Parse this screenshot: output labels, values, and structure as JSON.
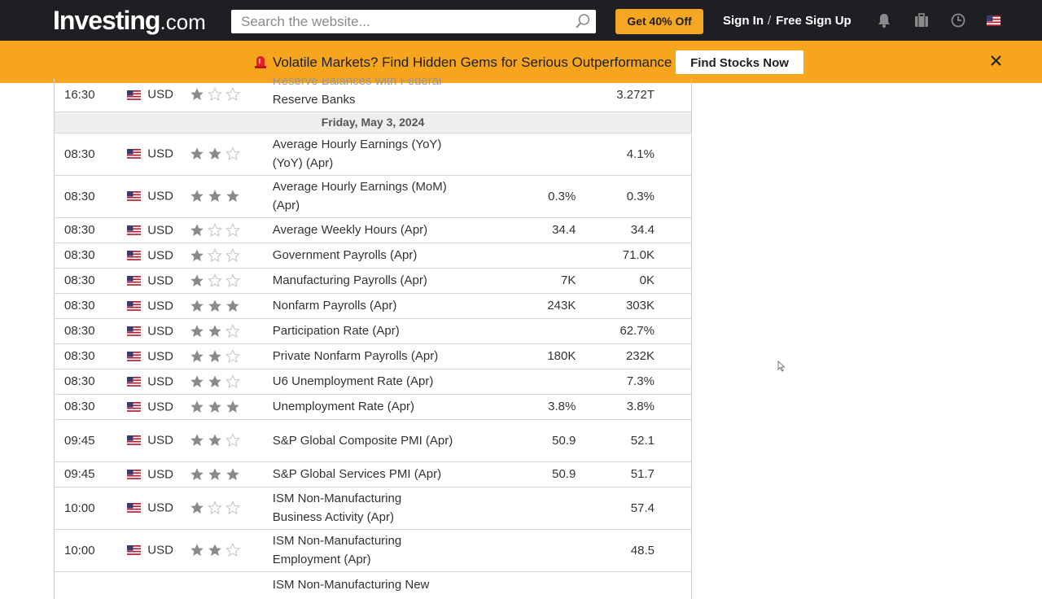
{
  "header": {
    "logo_main": "Investing",
    "logo_suffix": ".com",
    "search_placeholder": "Search the website...",
    "promo_button": "Get 40% Off",
    "sign_in": "Sign In",
    "separator": "/",
    "sign_up": "Free Sign Up",
    "icons": [
      "bell-icon",
      "briefcase-icon",
      "clock-icon",
      "us-flag-icon"
    ]
  },
  "banner": {
    "text": "Volatile Markets? Find Hidden Gems for Serious Outperformance",
    "cta": "Find Stocks Now",
    "icons": [
      "alarm-icon",
      "close-icon"
    ],
    "colors": {
      "background": "#f6a51d"
    }
  },
  "calendar": {
    "partial_row": {
      "time": "16:30",
      "currency": "USD",
      "importance": 1,
      "event_line1": "Reserve Balances with Federal",
      "event_line2": "Reserve Banks",
      "actual": "",
      "forecast": "",
      "previous": "3.272T"
    },
    "date_header": "Friday, May 3, 2024",
    "rows": [
      {
        "time": "08:30",
        "currency": "USD",
        "importance": 2,
        "event": "Average Hourly Earnings (YoY) (YoY) (Apr)",
        "forecast": "",
        "previous": "4.1%",
        "tall": true
      },
      {
        "time": "08:30",
        "currency": "USD",
        "importance": 3,
        "event": "Average Hourly Earnings (MoM) (Apr)",
        "forecast": "0.3%",
        "previous": "0.3%",
        "tall": true
      },
      {
        "time": "08:30",
        "currency": "USD",
        "importance": 1,
        "event": "Average Weekly Hours (Apr)",
        "forecast": "34.4",
        "previous": "34.4",
        "tall": false
      },
      {
        "time": "08:30",
        "currency": "USD",
        "importance": 1,
        "event": "Government Payrolls (Apr)",
        "forecast": "",
        "previous": "71.0K",
        "tall": false
      },
      {
        "time": "08:30",
        "currency": "USD",
        "importance": 1,
        "event": "Manufacturing Payrolls (Apr)",
        "forecast": "7K",
        "previous": "0K",
        "tall": false
      },
      {
        "time": "08:30",
        "currency": "USD",
        "importance": 3,
        "event": "Nonfarm Payrolls (Apr)",
        "forecast": "243K",
        "previous": "303K",
        "tall": false
      },
      {
        "time": "08:30",
        "currency": "USD",
        "importance": 2,
        "event": "Participation Rate (Apr)",
        "forecast": "",
        "previous": "62.7%",
        "tall": false
      },
      {
        "time": "08:30",
        "currency": "USD",
        "importance": 2,
        "event": "Private Nonfarm Payrolls (Apr)",
        "forecast": "180K",
        "previous": "232K",
        "tall": false
      },
      {
        "time": "08:30",
        "currency": "USD",
        "importance": 2,
        "event": "U6 Unemployment Rate (Apr)",
        "forecast": "",
        "previous": "7.3%",
        "tall": false
      },
      {
        "time": "08:30",
        "currency": "USD",
        "importance": 3,
        "event": "Unemployment Rate (Apr)",
        "forecast": "3.8%",
        "previous": "3.8%",
        "tall": false
      },
      {
        "time": "09:45",
        "currency": "USD",
        "importance": 2,
        "event": "S&P Global Composite PMI (Apr)",
        "forecast": "50.9",
        "previous": "52.1",
        "tall": true
      },
      {
        "time": "09:45",
        "currency": "USD",
        "importance": 3,
        "event": "S&P Global Services PMI (Apr)",
        "forecast": "50.9",
        "previous": "51.7",
        "tall": false
      },
      {
        "time": "10:00",
        "currency": "USD",
        "importance": 1,
        "event": "ISM Non-Manufacturing Business Activity (Apr)",
        "forecast": "",
        "previous": "57.4",
        "tall": true
      },
      {
        "time": "10:00",
        "currency": "USD",
        "importance": 2,
        "event": "ISM Non-Manufacturing Employment (Apr)",
        "forecast": "",
        "previous": "48.5",
        "tall": true
      },
      {
        "time": "",
        "currency": "",
        "importance": 0,
        "event": "ISM Non-Manufacturing New",
        "forecast": "",
        "previous": "",
        "tall": true
      }
    ],
    "colors": {
      "star_filled": "#8a8a8a",
      "star_empty": "#c8c8c8",
      "flag_blue": "#3c3b6e",
      "flag_red": "#b22234"
    }
  }
}
